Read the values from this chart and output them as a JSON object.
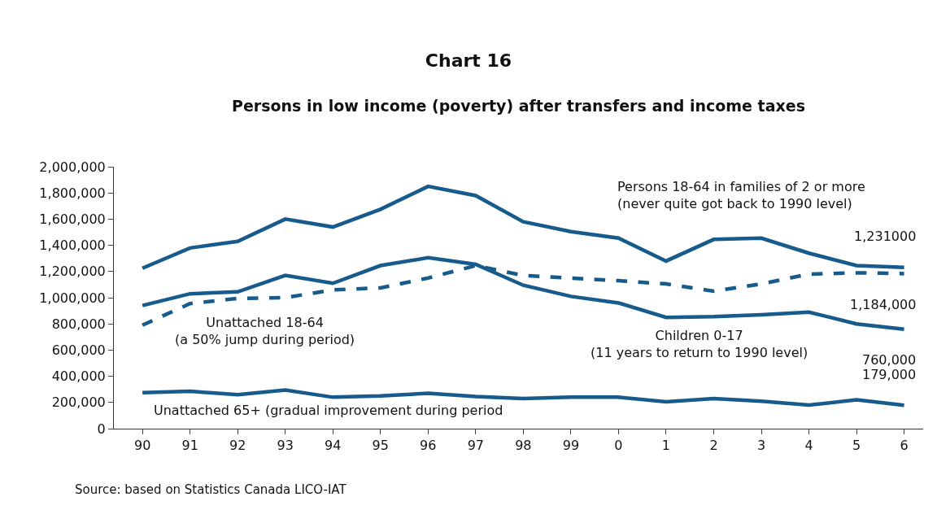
{
  "chart_data": {
    "type": "line",
    "title": "Chart 16",
    "subtitle": "Persons in low income (poverty) after transfers and income taxes",
    "categories": [
      "90",
      "91",
      "92",
      "93",
      "94",
      "95",
      "96",
      "97",
      "98",
      "99",
      "0",
      "1",
      "2",
      "3",
      "4",
      "5",
      "6"
    ],
    "series": [
      {
        "name": "Persons 18-64 in families of 2 or more\n(never quite got back to 1990 level)",
        "color": "#175a8c",
        "line_style": "solid",
        "values": [
          1225000,
          1380000,
          1430000,
          1600000,
          1540000,
          1675000,
          1850000,
          1780000,
          1580000,
          1505000,
          1455000,
          1280000,
          1445000,
          1455000,
          1340000,
          1245000,
          1231000
        ],
        "value_labels": [
          null,
          null,
          null,
          null,
          null,
          null,
          null,
          null,
          null,
          null,
          null,
          null,
          null,
          null,
          null,
          null,
          "1,231000"
        ]
      },
      {
        "name": "Children 0-17\n(11 years to return to 1990 level)",
        "color": "#175a8c",
        "line_style": "solid",
        "values": [
          940000,
          1030000,
          1045000,
          1170000,
          1110000,
          1245000,
          1305000,
          1255000,
          1095000,
          1010000,
          960000,
          850000,
          855000,
          870000,
          890000,
          800000,
          760000
        ],
        "value_labels": [
          null,
          null,
          null,
          null,
          null,
          null,
          null,
          null,
          null,
          null,
          null,
          null,
          null,
          null,
          null,
          null,
          "760,000"
        ]
      },
      {
        "name": "Unattached 18-64\n(a 50% jump during period)",
        "color": "#175a8c",
        "line_style": "dashed",
        "values": [
          790000,
          955000,
          995000,
          1000000,
          1060000,
          1075000,
          1150000,
          1245000,
          1170000,
          1150000,
          1130000,
          1105000,
          1050000,
          1105000,
          1180000,
          1190000,
          1184000
        ],
        "value_labels": [
          null,
          null,
          null,
          null,
          null,
          null,
          null,
          null,
          null,
          null,
          null,
          null,
          null,
          null,
          null,
          null,
          "1,184,000"
        ]
      },
      {
        "name": "Unattached 65+ (gradual improvement during period",
        "color": "#175a8c",
        "line_style": "solid",
        "values": [
          275000,
          285000,
          260000,
          295000,
          240000,
          250000,
          270000,
          245000,
          230000,
          240000,
          240000,
          205000,
          230000,
          210000,
          180000,
          220000,
          179000
        ],
        "value_labels": [
          null,
          null,
          null,
          null,
          null,
          null,
          null,
          null,
          null,
          null,
          null,
          null,
          null,
          null,
          null,
          null,
          "179,000"
        ]
      }
    ],
    "ylim": [
      0,
      2000000
    ],
    "yticks": [
      {
        "value": 0,
        "label": "0"
      },
      {
        "value": 200000,
        "label": "200,000"
      },
      {
        "value": 400000,
        "label": "400,000"
      },
      {
        "value": 600000,
        "label": "600,000"
      },
      {
        "value": 800000,
        "label": "800,000"
      },
      {
        "value": 1000000,
        "label": "1,000,000"
      },
      {
        "value": 1200000,
        "label": "1,200,000"
      },
      {
        "value": 1400000,
        "label": "1,400,000"
      },
      {
        "value": 1600000,
        "label": "1,600,000"
      },
      {
        "value": 1800000,
        "label": "1,800,000"
      },
      {
        "value": 2000000,
        "label": "2,000,000"
      }
    ],
    "marker": "none",
    "annotations": [
      "Source: based on Statistics Canada LICO-IAT"
    ]
  }
}
